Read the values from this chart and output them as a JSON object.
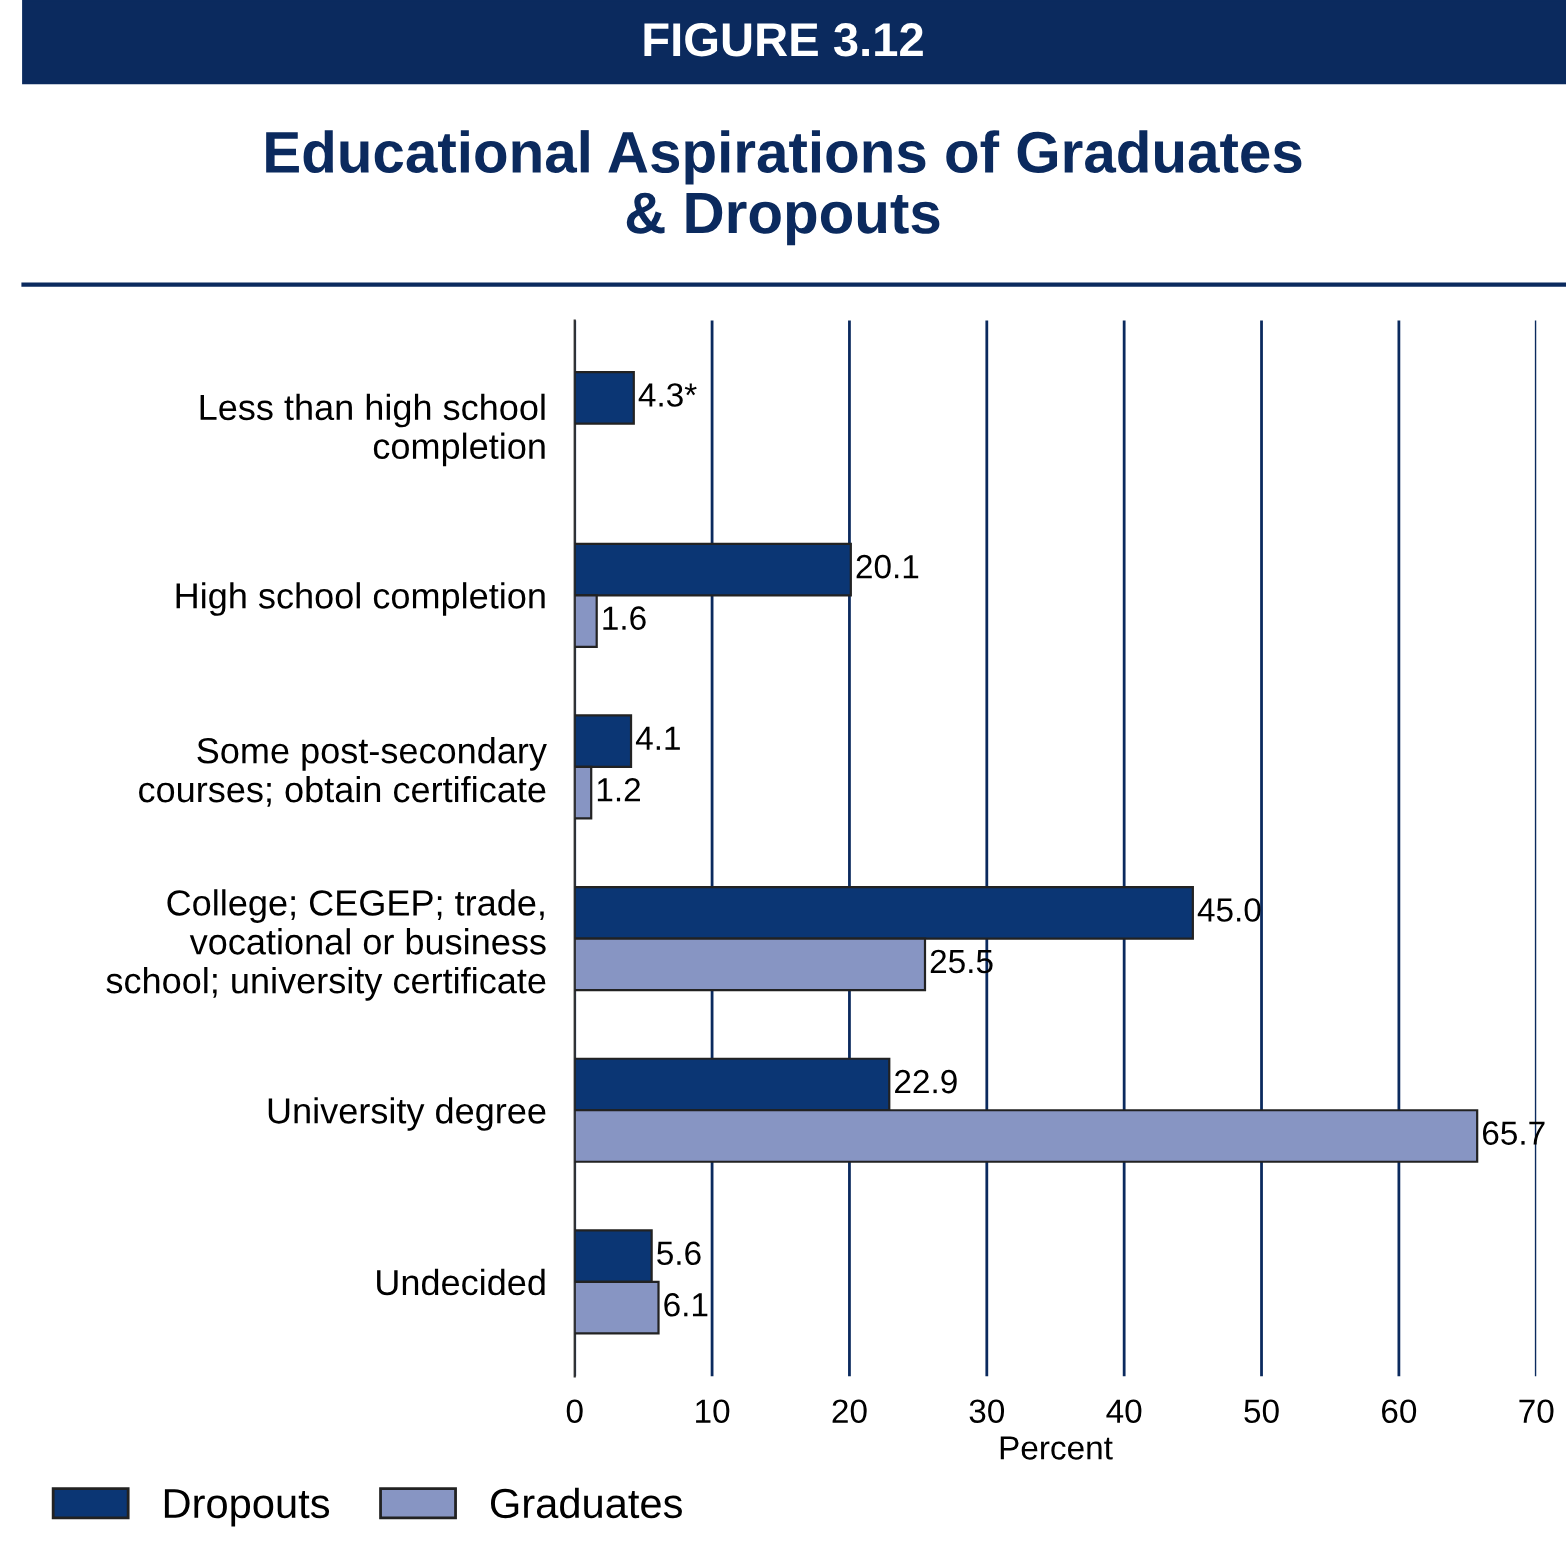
{
  "chart_data": {
    "type": "bar",
    "orientation": "horizontal",
    "subtitle": "FIGURE 3.12",
    "title": "Educational Aspirations of Graduates\n& Dropouts",
    "xlabel": "Percent",
    "categories": [
      "Less than high school\ncompletion",
      "High school completion",
      "Some post-secondary\ncourses; obtain certificate",
      "College; CEGEP; trade,\nvocational or business\nschool; university certificate",
      "University degree",
      "Undecided"
    ],
    "series": [
      {
        "name": "Dropouts",
        "color": "#0b3674",
        "values": [
          4.3,
          20.1,
          4.1,
          45.0,
          22.9,
          5.6
        ],
        "value_labels": [
          "4.3*",
          "20.1",
          "4.1",
          "45.0",
          "22.9",
          "5.6"
        ]
      },
      {
        "name": "Graduates",
        "color": "#8795c3",
        "values": [
          null,
          1.6,
          1.2,
          25.5,
          65.7,
          6.1
        ],
        "value_labels": [
          null,
          "1.6",
          "1.2",
          "25.5",
          "65.7",
          "6.1"
        ]
      }
    ],
    "xlim": [
      0,
      70
    ],
    "xticks": [
      0,
      10,
      20,
      30,
      40,
      50,
      60,
      70
    ],
    "grid": "x",
    "legend": "bottom left"
  }
}
